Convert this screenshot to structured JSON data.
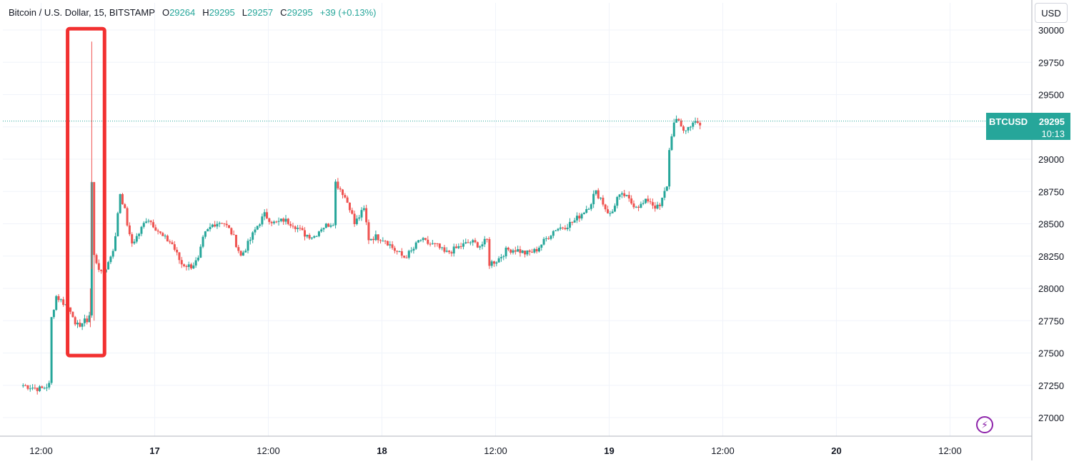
{
  "header": {
    "title": "Bitcoin / U.S. Dollar, 15, BITSTAMP",
    "o_label": "O",
    "o_value": "29264",
    "h_label": "H",
    "h_value": "29295",
    "l_label": "L",
    "l_value": "29257",
    "c_label": "C",
    "c_value": "29295",
    "change": "+39 (+0.13%)"
  },
  "currency_button": "USD",
  "price_tag": {
    "symbol": "BTCUSD",
    "value": "29295",
    "countdown": "10:13"
  },
  "colors": {
    "up": "#26a69a",
    "down": "#ef5350",
    "highlight": "#f23030",
    "grid": "#f0f3fa",
    "text": "#131722"
  },
  "icons": {
    "replay": "lightning-bolt-icon"
  },
  "chart_data": {
    "type": "candlestick",
    "title": "Bitcoin / U.S. Dollar, 15, BITSTAMP",
    "ylim": [
      26900,
      30050
    ],
    "y_ticks": [
      27000,
      27250,
      27500,
      27750,
      28000,
      28250,
      28500,
      28750,
      29000,
      29250,
      29500,
      29750,
      30000
    ],
    "y_tick_labels": [
      "27000",
      "27250",
      "27500",
      "27750",
      "28000",
      "28250",
      "28500",
      "28750",
      "29000",
      "",
      "29500",
      "29750",
      "30000"
    ],
    "x_ticks": [
      {
        "hour": 12,
        "label": "12:00"
      },
      {
        "hour": 24,
        "label": "17"
      },
      {
        "hour": 36,
        "label": "12:00"
      },
      {
        "hour": 48,
        "label": "18"
      },
      {
        "hour": 60,
        "label": "12:00"
      },
      {
        "hour": 72,
        "label": "19"
      },
      {
        "hour": 84,
        "label": "12:00"
      },
      {
        "hour": 96,
        "label": "20"
      },
      {
        "hour": 108,
        "label": "12:00"
      }
    ],
    "last_price": 29295,
    "grid": true,
    "annotation": {
      "type": "rectangle",
      "color": "#f23030",
      "x_range": [
        14.8,
        18.7
      ],
      "y_range": [
        27480,
        30010
      ]
    },
    "anchors": [
      [
        10.1,
        27250
      ],
      [
        12,
        27220
      ],
      [
        13,
        27260
      ],
      [
        13.1,
        27770
      ],
      [
        13.6,
        27940
      ],
      [
        14.5,
        27880
      ],
      [
        15.3,
        27820
      ],
      [
        15.6,
        27700
      ],
      [
        16.5,
        27740
      ],
      [
        17.0,
        27760
      ],
      [
        17.2,
        27830
      ],
      [
        17.4,
        29150
      ],
      [
        17.6,
        28250
      ],
      [
        18.0,
        28180
      ],
      [
        18.4,
        28100
      ],
      [
        19,
        28180
      ],
      [
        19.8,
        28350
      ],
      [
        20.3,
        28750
      ],
      [
        20.8,
        28620
      ],
      [
        21.5,
        28340
      ],
      [
        22.3,
        28420
      ],
      [
        23.2,
        28550
      ],
      [
        24,
        28480
      ],
      [
        24.8,
        28400
      ],
      [
        25.8,
        28350
      ],
      [
        26.8,
        28190
      ],
      [
        27.8,
        28170
      ],
      [
        28.6,
        28220
      ],
      [
        29.2,
        28410
      ],
      [
        30.2,
        28500
      ],
      [
        31.2,
        28520
      ],
      [
        32.2,
        28420
      ],
      [
        33.1,
        28250
      ],
      [
        33.9,
        28350
      ],
      [
        34.8,
        28480
      ],
      [
        35.6,
        28570
      ],
      [
        36.7,
        28500
      ],
      [
        37.6,
        28530
      ],
      [
        38.6,
        28500
      ],
      [
        39.8,
        28420
      ],
      [
        40.8,
        28400
      ],
      [
        41.6,
        28470
      ],
      [
        42.5,
        28500
      ],
      [
        43,
        28520
      ],
      [
        43.1,
        28820
      ],
      [
        43.8,
        28750
      ],
      [
        44.6,
        28630
      ],
      [
        45.1,
        28500
      ],
      [
        45.8,
        28580
      ],
      [
        46.3,
        28630
      ],
      [
        46.4,
        28380
      ],
      [
        47.3,
        28400
      ],
      [
        48.3,
        28380
      ],
      [
        49.3,
        28300
      ],
      [
        50.3,
        28240
      ],
      [
        51.2,
        28290
      ],
      [
        52.0,
        28380
      ],
      [
        52.8,
        28350
      ],
      [
        53.8,
        28330
      ],
      [
        54.7,
        28270
      ],
      [
        55.6,
        28300
      ],
      [
        56.4,
        28330
      ],
      [
        57.4,
        28360
      ],
      [
        58.4,
        28330
      ],
      [
        59.2,
        28380
      ],
      [
        59.3,
        28190
      ],
      [
        60.2,
        28220
      ],
      [
        61.2,
        28300
      ],
      [
        62.2,
        28300
      ],
      [
        63.2,
        28270
      ],
      [
        64.2,
        28290
      ],
      [
        65.3,
        28380
      ],
      [
        66.3,
        28460
      ],
      [
        67.3,
        28480
      ],
      [
        68.3,
        28520
      ],
      [
        69.1,
        28580
      ],
      [
        70.0,
        28650
      ],
      [
        70.5,
        28750
      ],
      [
        71.1,
        28700
      ],
      [
        71.6,
        28620
      ],
      [
        72.2,
        28560
      ],
      [
        72.8,
        28700
      ],
      [
        73.6,
        28720
      ],
      [
        74.5,
        28650
      ],
      [
        75.3,
        28640
      ],
      [
        76.2,
        28690
      ],
      [
        76.7,
        28640
      ],
      [
        77.3,
        28620
      ],
      [
        78.1,
        28800
      ],
      [
        78.4,
        29120
      ],
      [
        78.8,
        29270
      ],
      [
        79.3,
        29300
      ],
      [
        80.0,
        29210
      ],
      [
        80.8,
        29290
      ],
      [
        81.6,
        29260
      ]
    ],
    "spikes": [
      {
        "at": 17.35,
        "high": 29910,
        "low": 28150
      },
      {
        "at": 17.6,
        "high": 28480,
        "low": 27750
      },
      {
        "at": 17.2,
        "high": 28000,
        "low": 27700
      }
    ]
  }
}
